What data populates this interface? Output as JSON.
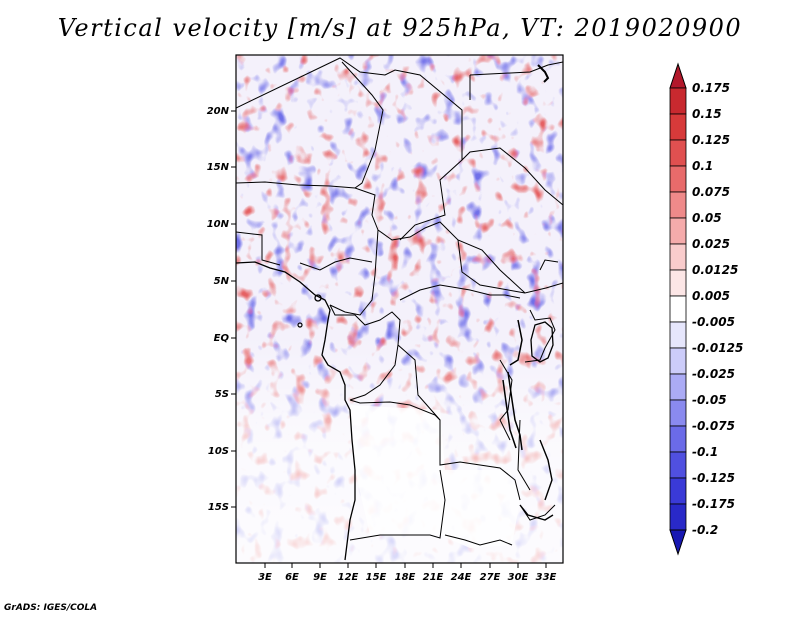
{
  "title": "Vertical velocity [m/s] at 925hPa, VT: 2019020900",
  "credit": "GrADS: IGES/COLA",
  "colorbar": {
    "labels": [
      "0.175",
      "0.15",
      "0.125",
      "0.1",
      "0.075",
      "0.05",
      "0.025",
      "0.0125",
      "0.005",
      "-0.005",
      "-0.0125",
      "-0.025",
      "-0.05",
      "-0.075",
      "-0.1",
      "-0.125",
      "-0.175",
      "-0.2"
    ],
    "colors": [
      "#b2182b",
      "#c8292f",
      "#d73a3a",
      "#e05050",
      "#e86b6b",
      "#ef8a8a",
      "#f5abab",
      "#f9cccc",
      "#fce6e6",
      "#ffffff",
      "#e6e6fc",
      "#ccccf9",
      "#ababf5",
      "#8a8aef",
      "#6b6be8",
      "#5050e0",
      "#3a3ad7",
      "#2929c8",
      "#1818b2"
    ]
  },
  "axes": {
    "lat_labels": [
      "20N",
      "15N",
      "10N",
      "5N",
      "EQ",
      "5S",
      "10S",
      "15S"
    ],
    "lon_labels": [
      "3E",
      "6E",
      "9E",
      "12E",
      "15E",
      "18E",
      "21E",
      "24E",
      "27E",
      "30E",
      "33E"
    ]
  }
}
